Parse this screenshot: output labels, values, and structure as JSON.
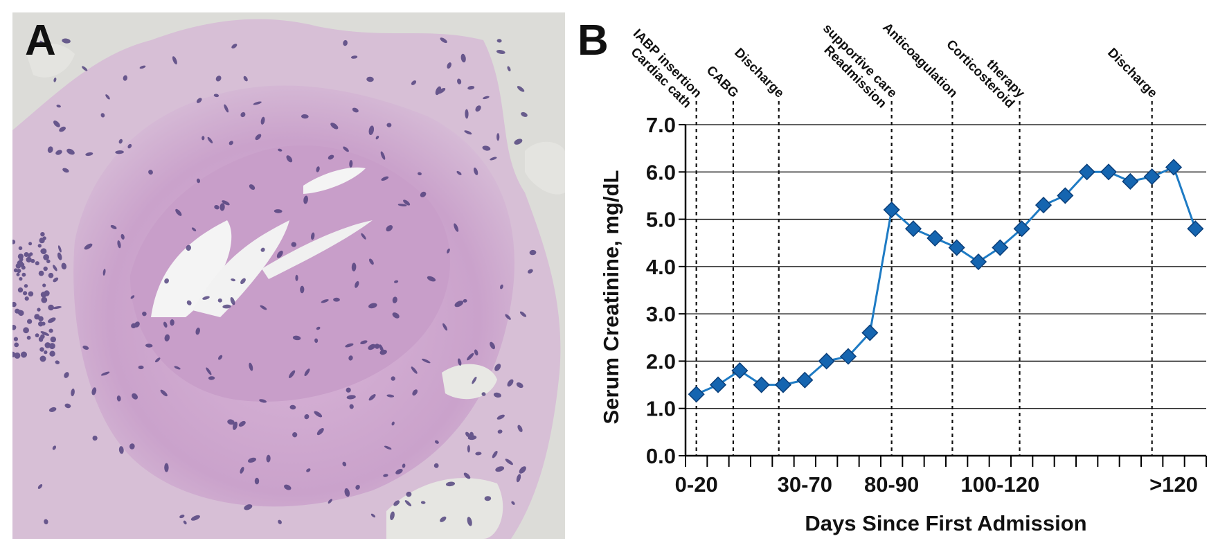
{
  "panels": {
    "a_label": "A",
    "b_label": "B"
  },
  "micrograph": {
    "colors": {
      "background": "#dcdcd8",
      "tissue": "#cfa9cf",
      "tissue_dark": "#b98fbf",
      "nuclei": "#4b3d7a",
      "cleft": "#f4f4f4"
    }
  },
  "chart_data": {
    "type": "line",
    "ylabel": "Serum Creatinine, mg/dL",
    "xlabel": "Days Since First Admission",
    "ylim": [
      0,
      7
    ],
    "yticks": [
      "0.0",
      "1.0",
      "2.0",
      "3.0",
      "4.0",
      "5.0",
      "6.0",
      "7.0"
    ],
    "grid": "horizontal",
    "x_tick_count": 24,
    "x_labels": [
      {
        "text": "0-20",
        "at": 0
      },
      {
        "text": "30-70",
        "at": 5
      },
      {
        "text": "80-90",
        "at": 9
      },
      {
        "text": "100-120",
        "at": 14
      },
      {
        "text": ">120",
        "at": 22
      }
    ],
    "series": [
      {
        "values": [
          1.3,
          1.5,
          1.8,
          1.5,
          1.5,
          1.6,
          2.0,
          2.1,
          2.6,
          5.2,
          4.8,
          4.6,
          4.4,
          4.1,
          4.4,
          4.8,
          5.3,
          5.5,
          6.0,
          6.0,
          5.8,
          5.9,
          6.1,
          4.8
        ]
      }
    ],
    "colors": {
      "line": "#1e7bc4",
      "marker": "#1565b0",
      "marker_edge": "#0b3f7a",
      "grid": "#000000"
    },
    "events": [
      {
        "lines": [
          "Cardiac cath",
          "IABP insertion"
        ],
        "at": 0.5
      },
      {
        "lines": [
          "CABG"
        ],
        "at": 2.2
      },
      {
        "lines": [
          "Discharge"
        ],
        "at": 4.3
      },
      {
        "lines": [
          "Readmission",
          "supportive care"
        ],
        "at": 9.5
      },
      {
        "lines": [
          "Anticoagulation"
        ],
        "at": 12.3
      },
      {
        "lines": [
          "Corticosteroid",
          "therapy"
        ],
        "at": 15.4
      },
      {
        "lines": [
          "Discharge"
        ],
        "at": 21.5
      }
    ]
  }
}
